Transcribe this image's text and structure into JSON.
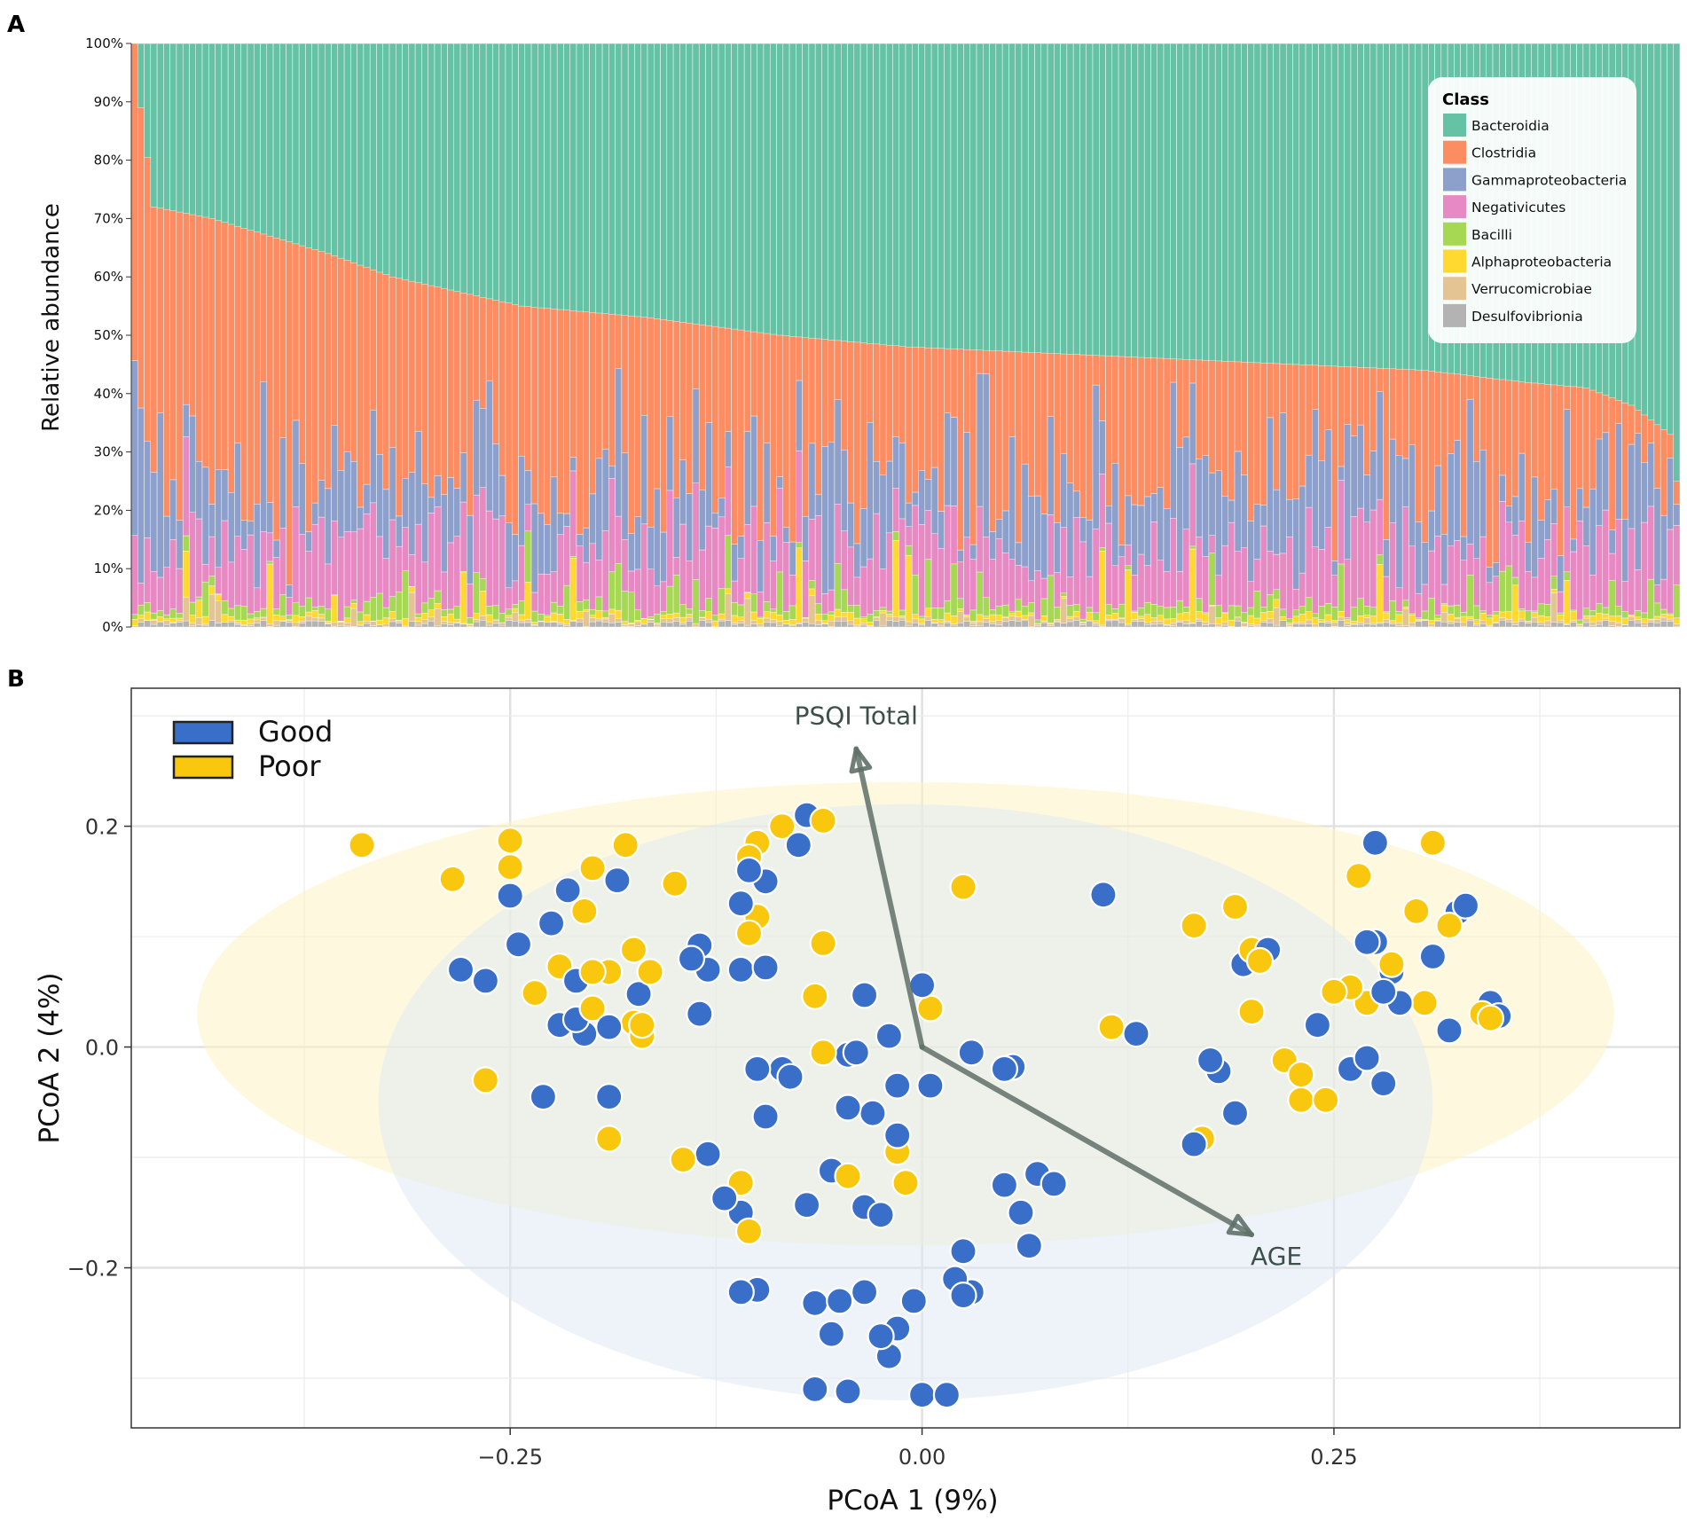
{
  "colors": {
    "bacteroidia": "#66c2a5",
    "clostridia": "#fc8d62",
    "gamma": "#8da0cb",
    "negativicutes": "#e78ac3",
    "bacilli": "#a6d854",
    "alpha": "#ffd92f",
    "verruco": "#e5c494",
    "desulfo": "#b3b3b3",
    "good": "#3a6fc9",
    "poor": "#f9c80e",
    "arrow": "#5f7068"
  },
  "chart_data": [
    {
      "type": "bar",
      "panel_label": "A",
      "stacked": true,
      "ylabel": "Relative abundance",
      "ylim": [
        0,
        100
      ],
      "yticks": [
        "0%",
        "10%",
        "20%",
        "30%",
        "40%",
        "50%",
        "60%",
        "70%",
        "80%",
        "90%",
        "100%"
      ],
      "n_samples": 240,
      "legend": {
        "title": "Class",
        "position": "top-right",
        "entries": [
          "Bacteroidia",
          "Clostridia",
          "Gammaproteobacteria",
          "Negativicutes",
          "Bacilli",
          "Alphaproteobacteria",
          "Verrucomicrobiae",
          "Desulfovibrionia"
        ]
      },
      "series_order": [
        "Desulfovibrionia",
        "Verrucomicrobiae",
        "Alphaproteobacteria",
        "Bacilli",
        "Negativicutes",
        "Gammaproteobacteria",
        "Clostridia",
        "Bacteroidia"
      ],
      "profile_note": "Bacteroidia fills each bar to 100%; samples ordered by decreasing Clostridia+lower classes",
      "top_of_clostridia_percent": [
        100,
        89,
        72,
        71,
        70,
        69,
        68,
        67,
        66,
        64,
        63,
        62,
        61,
        60,
        59,
        58,
        57,
        56,
        55,
        54,
        53,
        52,
        51,
        50,
        49,
        48,
        47,
        46,
        45,
        44,
        43,
        42,
        41,
        40,
        39,
        38,
        37,
        36,
        35,
        34,
        33,
        32,
        30,
        28,
        25
      ],
      "top_of_clostridia_knots_at_sample": [
        0,
        1,
        3,
        12,
        30,
        40,
        60,
        80,
        100,
        120,
        140,
        160,
        180,
        200,
        215,
        225,
        232,
        238,
        239
      ]
    },
    {
      "type": "scatter",
      "panel_label": "B",
      "xlabel": "PCoA 1 (9%)",
      "ylabel": "PCoA 2 (4%)",
      "xlim": [
        -0.48,
        0.46
      ],
      "ylim": [
        -0.345,
        0.325
      ],
      "xticks": [
        -0.25,
        0.0,
        0.25
      ],
      "xtick_labels": [
        "−0.25",
        "0.00",
        "0.25"
      ],
      "yticks": [
        -0.2,
        0.0,
        0.2
      ],
      "ytick_labels": [
        "−0.2",
        "0.0",
        "0.2"
      ],
      "legend": {
        "position": "top-left",
        "entries": [
          "Good",
          "Poor"
        ]
      },
      "ellipses": [
        {
          "group": "Poor",
          "cx": -0.01,
          "cy": 0.03,
          "rx": 0.43,
          "ry": 0.21
        },
        {
          "group": "Good",
          "cx": -0.01,
          "cy": -0.05,
          "rx": 0.32,
          "ry": 0.27
        }
      ],
      "vectors": [
        {
          "label": "PSQI Total",
          "x": -0.04,
          "y": 0.27
        },
        {
          "label": "AGE",
          "x": 0.2,
          "y": -0.17
        }
      ],
      "series": [
        {
          "name": "Good",
          "points": [
            [
              -0.28,
              0.07
            ],
            [
              -0.265,
              0.06
            ],
            [
              -0.25,
              0.137
            ],
            [
              -0.245,
              0.093
            ],
            [
              -0.225,
              0.112
            ],
            [
              -0.215,
              0.142
            ],
            [
              -0.21,
              0.06
            ],
            [
              -0.21,
              0.025
            ],
            [
              -0.22,
              0.02
            ],
            [
              -0.205,
              0.012
            ],
            [
              -0.19,
              0.018
            ],
            [
              -0.185,
              0.151
            ],
            [
              -0.172,
              0.048
            ],
            [
              -0.23,
              -0.045
            ],
            [
              -0.19,
              -0.045
            ],
            [
              -0.14,
              0.08
            ],
            [
              -0.135,
              0.092
            ],
            [
              -0.13,
              0.07
            ],
            [
              -0.135,
              0.03
            ],
            [
              -0.11,
              0.13
            ],
            [
              -0.105,
              0.16
            ],
            [
              -0.095,
              0.15
            ],
            [
              -0.11,
              0.07
            ],
            [
              -0.095,
              0.072
            ],
            [
              -0.07,
              0.21
            ],
            [
              -0.075,
              0.183
            ],
            [
              -0.035,
              0.047
            ],
            [
              -0.02,
              0.01
            ],
            [
              -0.1,
              -0.02
            ],
            [
              -0.085,
              -0.02
            ],
            [
              -0.08,
              -0.027
            ],
            [
              -0.04,
              -0.005
            ],
            [
              -0.045,
              -0.007
            ],
            [
              -0.045,
              -0.055
            ],
            [
              -0.03,
              -0.06
            ],
            [
              -0.015,
              -0.035
            ],
            [
              0.005,
              -0.035
            ],
            [
              -0.095,
              -0.063
            ],
            [
              -0.015,
              -0.08
            ],
            [
              0.0,
              0.056
            ],
            [
              0.03,
              -0.005
            ],
            [
              0.05,
              -0.02
            ],
            [
              0.055,
              -0.018
            ],
            [
              -0.13,
              -0.097
            ],
            [
              -0.12,
              -0.137
            ],
            [
              -0.11,
              -0.15
            ],
            [
              -0.07,
              -0.143
            ],
            [
              -0.055,
              -0.112
            ],
            [
              -0.035,
              -0.145
            ],
            [
              -0.025,
              -0.152
            ],
            [
              0.05,
              -0.125
            ],
            [
              0.06,
              -0.15
            ],
            [
              0.065,
              -0.18
            ],
            [
              0.07,
              -0.115
            ],
            [
              0.08,
              -0.124
            ],
            [
              0.025,
              -0.185
            ],
            [
              0.02,
              -0.21
            ],
            [
              0.025,
              -0.225
            ],
            [
              0.03,
              -0.222
            ],
            [
              -0.11,
              -0.222
            ],
            [
              -0.1,
              -0.22
            ],
            [
              -0.065,
              -0.232
            ],
            [
              -0.05,
              -0.23
            ],
            [
              -0.035,
              -0.222
            ],
            [
              -0.055,
              -0.26
            ],
            [
              -0.025,
              -0.262
            ],
            [
              -0.015,
              -0.255
            ],
            [
              -0.005,
              -0.23
            ],
            [
              -0.02,
              -0.28
            ],
            [
              -0.065,
              -0.31
            ],
            [
              -0.045,
              -0.312
            ],
            [
              0.0,
              -0.315
            ],
            [
              0.015,
              -0.315
            ],
            [
              0.11,
              0.138
            ],
            [
              0.13,
              0.012
            ],
            [
              0.175,
              -0.012
            ],
            [
              0.18,
              -0.022
            ],
            [
              0.165,
              -0.088
            ],
            [
              0.19,
              -0.06
            ],
            [
              0.195,
              0.075
            ],
            [
              0.21,
              0.088
            ],
            [
              0.24,
              0.02
            ],
            [
              0.26,
              -0.02
            ],
            [
              0.27,
              -0.01
            ],
            [
              0.28,
              -0.033
            ],
            [
              0.275,
              0.185
            ],
            [
              0.27,
              0.095
            ],
            [
              0.275,
              0.095
            ],
            [
              0.28,
              0.05
            ],
            [
              0.285,
              0.068
            ],
            [
              0.29,
              0.04
            ],
            [
              0.31,
              0.082
            ],
            [
              0.32,
              0.015
            ],
            [
              0.325,
              0.122
            ],
            [
              0.33,
              0.128
            ],
            [
              0.345,
              0.04
            ],
            [
              0.35,
              0.028
            ]
          ]
        },
        {
          "name": "Poor",
          "points": [
            [
              -0.34,
              0.183
            ],
            [
              -0.285,
              0.152
            ],
            [
              -0.25,
              0.187
            ],
            [
              -0.25,
              0.163
            ],
            [
              -0.2,
              0.162
            ],
            [
              -0.18,
              0.183
            ],
            [
              -0.205,
              0.123
            ],
            [
              -0.235,
              0.049
            ],
            [
              -0.22,
              0.073
            ],
            [
              -0.2,
              0.068
            ],
            [
              -0.2,
              0.035
            ],
            [
              -0.19,
              0.068
            ],
            [
              -0.175,
              0.088
            ],
            [
              -0.165,
              0.068
            ],
            [
              -0.17,
              0.01
            ],
            [
              -0.17,
              0.02
            ],
            [
              -0.175,
              0.022
            ],
            [
              -0.265,
              -0.03
            ],
            [
              -0.19,
              -0.083
            ],
            [
              -0.15,
              0.148
            ],
            [
              -0.105,
              0.172
            ],
            [
              -0.1,
              0.185
            ],
            [
              -0.085,
              0.2
            ],
            [
              -0.06,
              0.205
            ],
            [
              -0.1,
              0.118
            ],
            [
              -0.105,
              0.103
            ],
            [
              -0.06,
              0.094
            ],
            [
              -0.065,
              0.046
            ],
            [
              -0.06,
              -0.005
            ],
            [
              0.025,
              0.145
            ],
            [
              0.005,
              0.035
            ],
            [
              -0.145,
              -0.102
            ],
            [
              -0.11,
              -0.123
            ],
            [
              -0.105,
              -0.167
            ],
            [
              -0.045,
              -0.117
            ],
            [
              -0.015,
              -0.095
            ],
            [
              -0.01,
              -0.123
            ],
            [
              0.115,
              0.018
            ],
            [
              0.165,
              0.11
            ],
            [
              0.19,
              0.127
            ],
            [
              0.2,
              0.088
            ],
            [
              0.205,
              0.078
            ],
            [
              0.2,
              0.032
            ],
            [
              0.22,
              -0.012
            ],
            [
              0.23,
              -0.025
            ],
            [
              0.23,
              -0.048
            ],
            [
              0.245,
              -0.048
            ],
            [
              0.25,
              0.05
            ],
            [
              0.26,
              0.054
            ],
            [
              0.265,
              0.155
            ],
            [
              0.27,
              0.04
            ],
            [
              0.285,
              0.075
            ],
            [
              0.3,
              0.123
            ],
            [
              0.305,
              0.04
            ],
            [
              0.31,
              0.185
            ],
            [
              0.32,
              0.11
            ],
            [
              0.34,
              0.03
            ],
            [
              0.345,
              0.026
            ],
            [
              0.17,
              -0.083
            ]
          ]
        }
      ]
    }
  ]
}
